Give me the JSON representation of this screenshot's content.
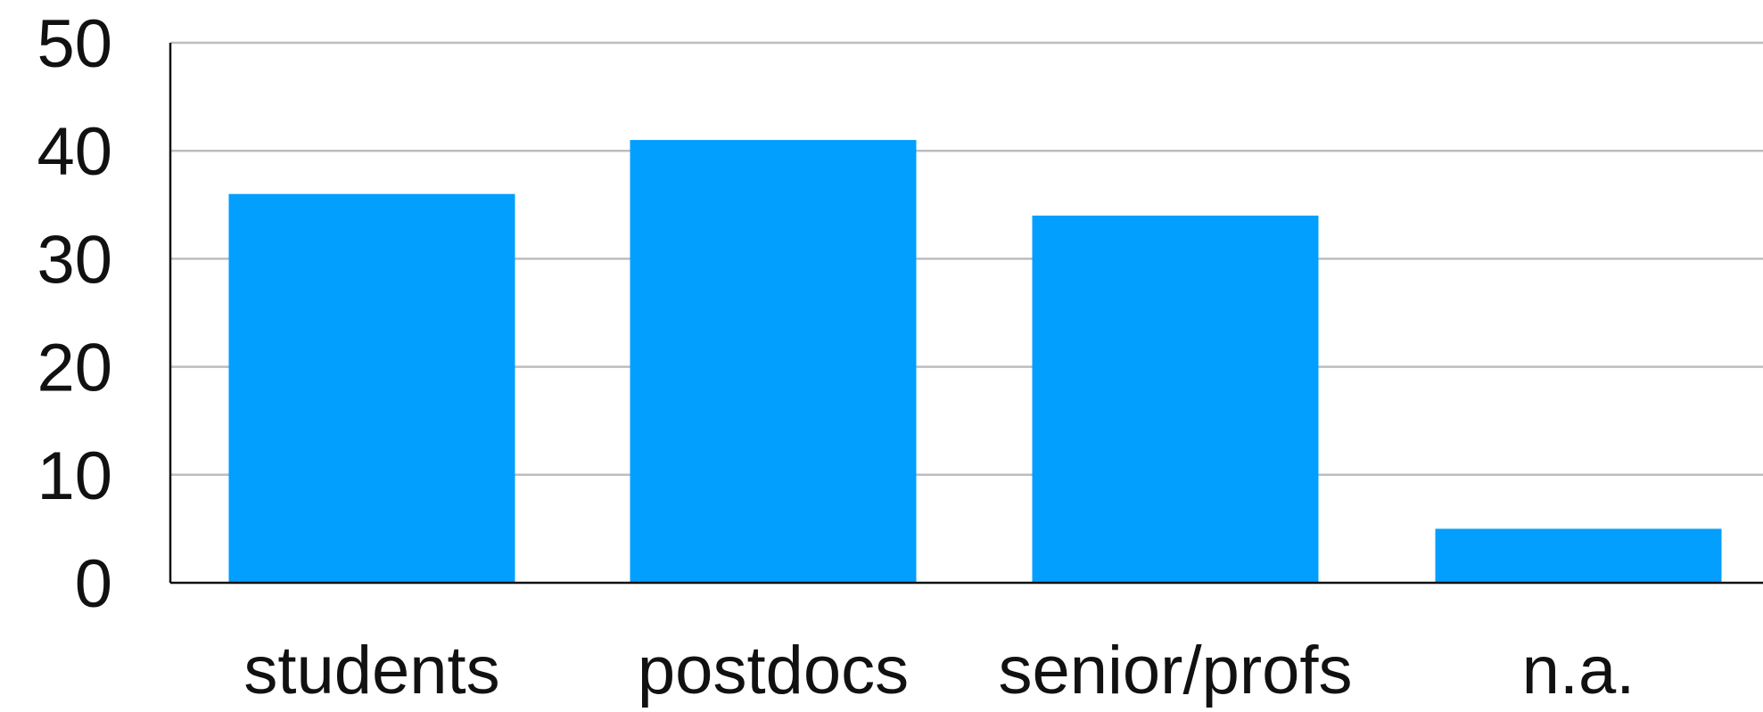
{
  "chart_data": {
    "type": "bar",
    "categories": [
      "students",
      "postdocs",
      "senior/profs",
      "n.a."
    ],
    "values": [
      36,
      41,
      34,
      5
    ],
    "ylim": [
      0,
      50
    ],
    "yticks": [
      "0",
      "10",
      "20",
      "30",
      "40",
      "50"
    ],
    "grid": true,
    "title": "",
    "xlabel": "",
    "ylabel": "",
    "colors": {
      "bar": "#039ffe",
      "grid": "#bdbdbd",
      "axis": "#111111",
      "text": "#111111"
    }
  }
}
